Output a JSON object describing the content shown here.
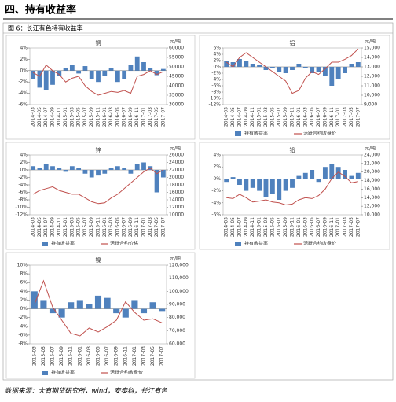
{
  "header": {
    "title": "四、持有收益率"
  },
  "caption": "图 6：长江有色持有收益率",
  "source": "数据来源：大有期货研究所，wind，安泰科，长江有色",
  "chart_data": [
    {
      "type": "combo",
      "title": "铜",
      "y2_unit": "元/吨",
      "categories": [
        "2014-03",
        "2014-05",
        "2014-07",
        "2014-09",
        "2014-11",
        "2015-01",
        "2015-03",
        "2015-05",
        "2015-07",
        "2015-09",
        "2015-11",
        "2016-01",
        "2016-03",
        "2016-05",
        "2016-07",
        "2016-09",
        "2016-11",
        "2017-01",
        "2017-03",
        "2017-05",
        "2017-07"
      ],
      "series": [
        {
          "type": "bar",
          "color": "#4f81bd",
          "values": [
            -1.5,
            -3,
            -3.5,
            -2.5,
            -1,
            0.5,
            1,
            -0.5,
            0.8,
            -1.5,
            -2,
            -1,
            0.5,
            -2,
            -1.5,
            1,
            2.5,
            1.5,
            0.5,
            -0.8,
            0.3
          ]
        },
        {
          "type": "line",
          "axis": "y2",
          "color": "#c0504d",
          "values": [
            47000,
            45000,
            51000,
            48000,
            46000,
            42000,
            44000,
            45000,
            40000,
            37000,
            35000,
            36000,
            37000,
            36500,
            37500,
            36000,
            45000,
            46000,
            48000,
            46000,
            47500
          ]
        }
      ],
      "ylim": [
        -6,
        4
      ],
      "yticks": [
        {
          "value": -6,
          "label": "-6%"
        },
        {
          "value": -4,
          "label": "-4%"
        },
        {
          "value": -2,
          "label": "-2%"
        },
        {
          "value": 0,
          "label": "0%"
        },
        {
          "value": 2,
          "label": "2%"
        },
        {
          "value": 4,
          "label": "4%"
        }
      ],
      "y2lim": [
        30000,
        60000
      ],
      "y2ticks": [
        30000,
        35000,
        40000,
        45000,
        50000,
        55000,
        60000
      ]
    },
    {
      "type": "combo",
      "title": "铝",
      "y2_unit": "元/吨",
      "categories": [
        "2014-03",
        "2014-05",
        "2014-07",
        "2014-09",
        "2014-11",
        "2015-01",
        "2015-03",
        "2015-05",
        "2015-07",
        "2015-09",
        "2015-11",
        "2016-01",
        "2016-03",
        "2016-05",
        "2016-07",
        "2016-09",
        "2016-11",
        "2017-01",
        "2017-03",
        "2017-05",
        "2017-07"
      ],
      "series": [
        {
          "type": "bar",
          "name": "持有收益率",
          "color": "#4f81bd",
          "values": [
            2,
            1.5,
            2.5,
            1.8,
            1,
            0.5,
            -1,
            -0.5,
            -1.5,
            -2,
            -1,
            1,
            -0.5,
            -2,
            -1.5,
            -3,
            -6,
            -4,
            -2,
            1,
            1.5
          ]
        },
        {
          "type": "line",
          "name": "活跃合约收盘价",
          "axis": "y2",
          "color": "#c0504d",
          "values": [
            13500,
            13000,
            14000,
            14500,
            14000,
            13500,
            13000,
            12500,
            12000,
            11500,
            10200,
            10500,
            11800,
            12500,
            12200,
            12800,
            13500,
            13500,
            13800,
            14200,
            14900
          ]
        }
      ],
      "ylim": [
        -12,
        6
      ],
      "yticks": [
        {
          "value": -12,
          "label": "-12%"
        },
        {
          "value": -10,
          "label": "-10%"
        },
        {
          "value": -8,
          "label": "-8%"
        },
        {
          "value": -6,
          "label": "-6%"
        },
        {
          "value": -4,
          "label": "-4%"
        },
        {
          "value": -2,
          "label": "-2%"
        },
        {
          "value": 0,
          "label": "0%"
        },
        {
          "value": 2,
          "label": "2%"
        },
        {
          "value": 4,
          "label": "4%"
        },
        {
          "value": 6,
          "label": "6%"
        }
      ],
      "y2lim": [
        9000,
        15000
      ],
      "y2ticks": [
        {
          "value": 9000,
          "label": "9,000"
        },
        {
          "value": 10000,
          "label": "10,000"
        },
        {
          "value": 11000,
          "label": "11,000"
        },
        {
          "value": 12000,
          "label": "12,000"
        },
        {
          "value": 13000,
          "label": "13,000"
        },
        {
          "value": 14000,
          "label": "14,000"
        },
        {
          "value": 15000,
          "label": "15,000"
        }
      ]
    },
    {
      "type": "combo",
      "title": "锌",
      "y2_unit": "元/吨",
      "categories": [
        "2014-03",
        "2014-05",
        "2014-07",
        "2014-09",
        "2014-11",
        "2015-01",
        "2015-03",
        "2015-05",
        "2015-07",
        "2015-09",
        "2015-11",
        "2016-01",
        "2016-03",
        "2016-05",
        "2016-07",
        "2016-09",
        "2016-11",
        "2017-01",
        "2017-03",
        "2017-05",
        "2017-07"
      ],
      "series": [
        {
          "type": "bar",
          "name": "持有收益率",
          "color": "#4f81bd",
          "values": [
            1,
            0.5,
            1.5,
            1,
            0.5,
            -0.5,
            1,
            0.5,
            -1,
            -2,
            -1.5,
            -1,
            0.5,
            1,
            0.5,
            -1,
            1.5,
            2,
            1,
            -6,
            -2
          ]
        },
        {
          "type": "line",
          "name": "活跃合约价格",
          "axis": "y2",
          "color": "#c0504d",
          "values": [
            15500,
            16500,
            17000,
            17500,
            16500,
            16000,
            15500,
            15500,
            14500,
            13500,
            13000,
            13200,
            14500,
            15500,
            17000,
            18500,
            20000,
            21500,
            22500,
            21000,
            22000
          ]
        }
      ],
      "ylim": [
        -12,
        4
      ],
      "yticks": [
        {
          "value": -12,
          "label": "-12%"
        },
        {
          "value": -10,
          "label": "-10%"
        },
        {
          "value": -8,
          "label": "-8%"
        },
        {
          "value": -6,
          "label": "-6%"
        },
        {
          "value": -4,
          "label": "-4%"
        },
        {
          "value": -2,
          "label": "-2%"
        },
        {
          "value": 0,
          "label": "0%"
        },
        {
          "value": 2,
          "label": "2%"
        },
        {
          "value": 4,
          "label": "4%"
        }
      ],
      "y2lim": [
        10000,
        26000
      ],
      "y2ticks": [
        10000,
        12000,
        14000,
        16000,
        18000,
        20000,
        22000,
        24000,
        26000
      ]
    },
    {
      "type": "combo",
      "title": "铅",
      "y2_unit": "元/吨",
      "categories": [
        "2014-03",
        "2014-05",
        "2014-07",
        "2014-09",
        "2014-11",
        "2015-01",
        "2015-03",
        "2015-05",
        "2015-07",
        "2015-09",
        "2015-11",
        "2016-01",
        "2016-03",
        "2016-05",
        "2016-07",
        "2016-09",
        "2016-11",
        "2017-01",
        "2017-03",
        "2017-05",
        "2017-07"
      ],
      "series": [
        {
          "type": "bar",
          "name": "持有收益率",
          "color": "#4f81bd",
          "values": [
            -0.5,
            0.3,
            -1,
            -2,
            -1.5,
            -2,
            -3,
            -2.5,
            -3.5,
            -2,
            -1.5,
            0.5,
            1,
            1.5,
            -0.5,
            2,
            2.5,
            2,
            1.5,
            0.5,
            1
          ]
        },
        {
          "type": "line",
          "name": "活跃合约收盘价",
          "axis": "y2",
          "color": "#c0504d",
          "values": [
            14000,
            13800,
            14800,
            14000,
            13000,
            13200,
            13500,
            13000,
            12800,
            12300,
            12500,
            13500,
            14000,
            13800,
            14500,
            16000,
            18500,
            20000,
            19000,
            17500,
            17800
          ]
        }
      ],
      "ylim": [
        -6,
        4
      ],
      "yticks": [
        {
          "value": -6,
          "label": "-6%"
        },
        {
          "value": -4,
          "label": "-4%"
        },
        {
          "value": -2,
          "label": "-2%"
        },
        {
          "value": 0,
          "label": "0%"
        },
        {
          "value": 2,
          "label": "2%"
        },
        {
          "value": 4,
          "label": "4%"
        }
      ],
      "y2lim": [
        10000,
        24000
      ],
      "y2ticks": [
        {
          "value": 10000,
          "label": "10,000"
        },
        {
          "value": 12000,
          "label": "12,000"
        },
        {
          "value": 14000,
          "label": "14,000"
        },
        {
          "value": 16000,
          "label": "16,000"
        },
        {
          "value": 18000,
          "label": "18,000"
        },
        {
          "value": 20000,
          "label": "20,000"
        },
        {
          "value": 22000,
          "label": "22,000"
        },
        {
          "value": 24000,
          "label": "24,000"
        }
      ]
    },
    {
      "type": "combo",
      "title": "镍",
      "y2_unit": "元/吨",
      "categories": [
        "2015-03",
        "2015-05",
        "2015-07",
        "2015-09",
        "2015-11",
        "2016-01",
        "2016-03",
        "2016-05",
        "2016-07",
        "2016-09",
        "2016-11",
        "2017-01",
        "2017-03",
        "2017-05",
        "2017-07"
      ],
      "series": [
        {
          "type": "bar",
          "name": "持有收益率",
          "color": "#4f81bd",
          "values": [
            4,
            2,
            -1,
            -2,
            1.5,
            2,
            1,
            3,
            2.5,
            -1,
            -2,
            2,
            -1,
            1.5,
            -0.5
          ]
        },
        {
          "type": "line",
          "name": "活跃合约收盘价",
          "axis": "y2",
          "color": "#c0504d",
          "values": [
            90000,
            108000,
            88000,
            78000,
            68000,
            66000,
            72000,
            69000,
            73000,
            78000,
            92000,
            84000,
            78000,
            79000,
            76000
          ]
        }
      ],
      "ylim": [
        -8,
        10
      ],
      "yticks": [
        {
          "value": -8,
          "label": "-8%"
        },
        {
          "value": -6,
          "label": "-6%"
        },
        {
          "value": -4,
          "label": "-4%"
        },
        {
          "value": -2,
          "label": "-2%"
        },
        {
          "value": 0,
          "label": "0%"
        },
        {
          "value": 2,
          "label": "2%"
        },
        {
          "value": 4,
          "label": "4%"
        },
        {
          "value": 6,
          "label": "6%"
        },
        {
          "value": 8,
          "label": "8%"
        },
        {
          "value": 10,
          "label": "10%"
        }
      ],
      "y2lim": [
        60000,
        120000
      ],
      "y2ticks": [
        {
          "value": 60000,
          "label": "60,000"
        },
        {
          "value": 70000,
          "label": "70,000"
        },
        {
          "value": 80000,
          "label": "80,000"
        },
        {
          "value": 90000,
          "label": "90,000"
        },
        {
          "value": 100000,
          "label": "100,000"
        },
        {
          "value": 110000,
          "label": "110,000"
        },
        {
          "value": 120000,
          "label": "120,000"
        }
      ]
    }
  ]
}
